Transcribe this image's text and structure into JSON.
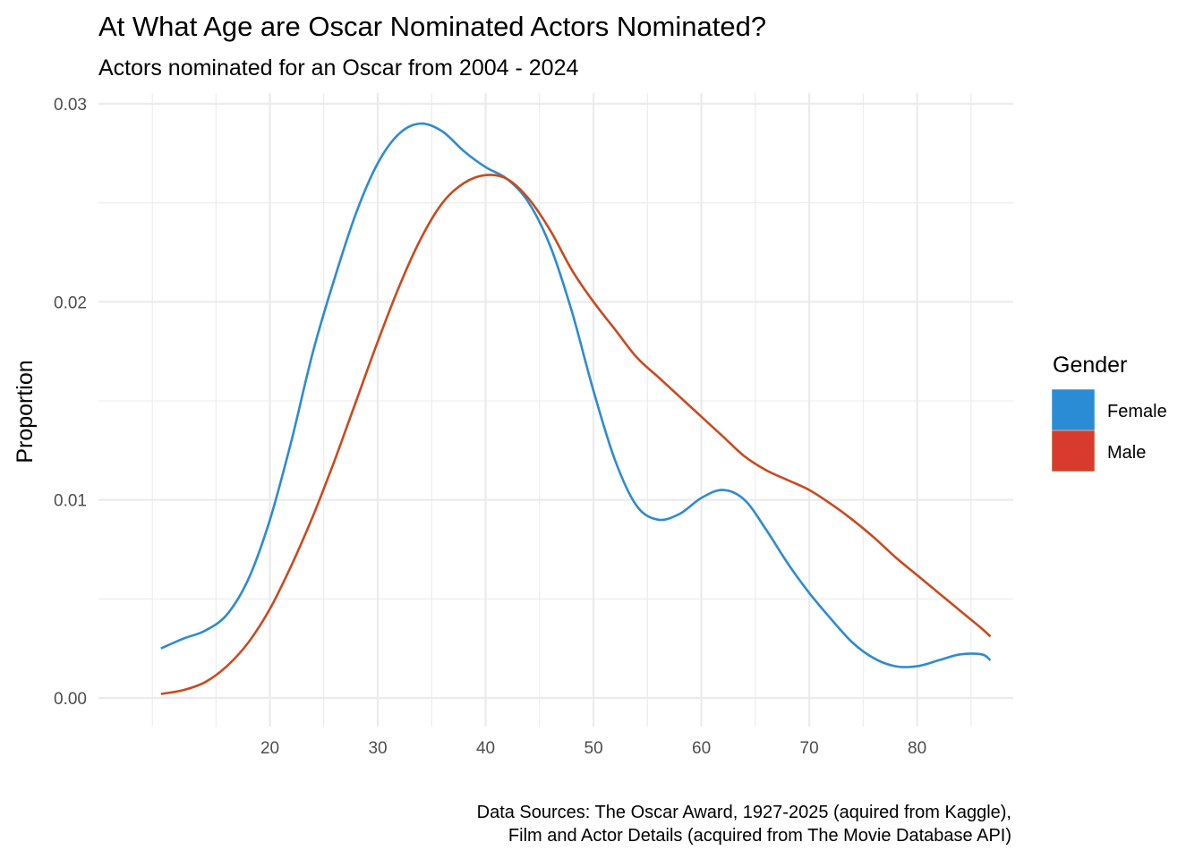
{
  "chart_data": {
    "type": "line",
    "title": "At What Age are Oscar Nominated Actors Nominated?",
    "subtitle": "Actors nominated for an Oscar from 2004 - 2024",
    "xlabel": "",
    "ylabel": "Proportion",
    "xlim": [
      9,
      88
    ],
    "ylim": [
      0,
      0.03
    ],
    "x_ticks": [
      20,
      30,
      40,
      50,
      60,
      70,
      80
    ],
    "x_tick_labels": [
      "20",
      "30",
      "40",
      "50",
      "60",
      "70",
      "80"
    ],
    "y_ticks": [
      0,
      0.01,
      0.02,
      0.03
    ],
    "y_tick_labels": [
      "0.00",
      "0.01",
      "0.02",
      "0.03"
    ],
    "grid": true,
    "legend": {
      "title": "Gender",
      "position": "right",
      "entries": [
        {
          "label": "Female",
          "color": "#2b8cd6"
        },
        {
          "label": "Male",
          "color": "#d93a2e"
        }
      ]
    },
    "series": [
      {
        "name": "Female",
        "color": "#2e8bd0",
        "x": [
          9.9,
          12,
          14,
          16,
          18,
          20,
          22,
          24,
          26,
          28,
          30,
          32,
          34,
          36,
          38,
          40,
          42,
          44,
          46,
          48,
          50,
          52,
          54,
          56,
          58,
          60,
          62,
          64,
          66,
          68,
          70,
          72,
          74,
          76,
          78,
          80,
          82,
          84,
          86,
          86.8
        ],
        "y": [
          0.0025,
          0.003,
          0.0034,
          0.0042,
          0.006,
          0.009,
          0.013,
          0.0175,
          0.0212,
          0.0245,
          0.027,
          0.0285,
          0.029,
          0.0286,
          0.0276,
          0.0268,
          0.0262,
          0.025,
          0.0228,
          0.0195,
          0.0155,
          0.012,
          0.0097,
          0.009,
          0.0093,
          0.0101,
          0.0105,
          0.01,
          0.0085,
          0.0068,
          0.0053,
          0.004,
          0.0028,
          0.002,
          0.0016,
          0.0016,
          0.0019,
          0.0022,
          0.0022,
          0.0019
        ]
      },
      {
        "name": "Male",
        "color": "#c94a1e",
        "x": [
          9.9,
          12,
          14,
          16,
          18,
          20,
          22,
          24,
          26,
          28,
          30,
          32,
          34,
          36,
          38,
          40,
          42,
          44,
          46,
          48,
          50,
          52,
          54,
          56,
          58,
          60,
          62,
          64,
          66,
          68,
          70,
          72,
          74,
          76,
          78,
          80,
          82,
          84,
          86,
          86.8
        ],
        "y": [
          0.0002,
          0.0004,
          0.0008,
          0.0016,
          0.0028,
          0.0045,
          0.0067,
          0.0092,
          0.012,
          0.015,
          0.018,
          0.0208,
          0.0232,
          0.025,
          0.026,
          0.0264,
          0.0262,
          0.0252,
          0.0236,
          0.0216,
          0.02,
          0.0186,
          0.0172,
          0.0162,
          0.0152,
          0.0142,
          0.0132,
          0.0122,
          0.0115,
          0.011,
          0.0105,
          0.0098,
          0.009,
          0.0081,
          0.0071,
          0.0062,
          0.0053,
          0.0044,
          0.0035,
          0.0031
        ]
      }
    ],
    "caption": [
      "Data Sources: The Oscar Award, 1927-2025 (aquired from Kaggle),",
      "Film and Actor Details (acquired from The Movie Database API)"
    ]
  }
}
